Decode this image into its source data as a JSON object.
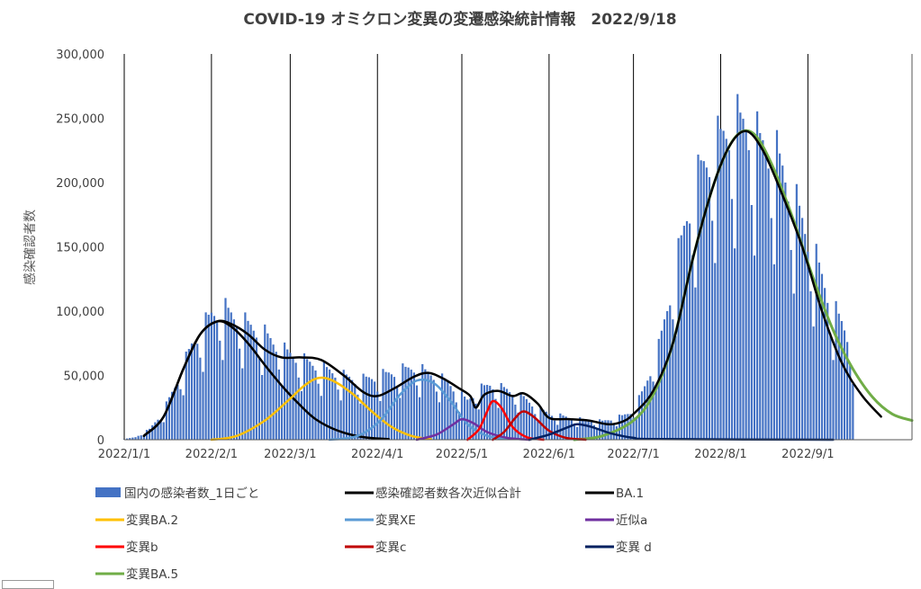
{
  "chart_data": {
    "type": "bar+line",
    "title": "COVID-19 オミクロン変異の変遷感染統計情報　2022/9/18",
    "ylabel": "感染確認者数",
    "xlabel": "",
    "ylim": [
      0,
      300000
    ],
    "y_ticks": [
      0,
      50000,
      100000,
      150000,
      200000,
      250000,
      300000
    ],
    "y_tick_labels": [
      "0",
      "50,000",
      "100,000",
      "150,000",
      "200,000",
      "250,000",
      "300,000"
    ],
    "x_range": [
      "2022/1/1",
      "2022/10/8"
    ],
    "x_ticks": [
      "2022/1/1",
      "2022/2/1",
      "2022/3/1",
      "2022/4/1",
      "2022/5/1",
      "2022/6/1",
      "2022/7/1",
      "2022/8/1",
      "2022/9/1"
    ],
    "x_tick_labels": [
      "2022/1/1",
      "2022/2/1",
      "2022/3/1",
      "2022/4/1",
      "2022/5/1",
      "2022/6/1",
      "2022/7/1",
      "2022/8/1",
      "2022/9/1"
    ],
    "vertical_gridlines": true,
    "horizontal_gridlines": false,
    "legend_position": "bottom",
    "daily_bars": {
      "name": "国内の感染者数_1日ごと",
      "color": "#4472C4",
      "keypoints": [
        [
          "2022/1/1",
          500
        ],
        [
          "2022/1/5",
          2000
        ],
        [
          "2022/1/10",
          8000
        ],
        [
          "2022/1/15",
          22000
        ],
        [
          "2022/1/20",
          45000
        ],
        [
          "2022/1/25",
          72000
        ],
        [
          "2022/2/1",
          95000
        ],
        [
          "2022/2/5",
          100000
        ],
        [
          "2022/2/10",
          92000
        ],
        [
          "2022/2/15",
          86000
        ],
        [
          "2022/2/20",
          80000
        ],
        [
          "2022/2/25",
          70000
        ],
        [
          "2022/3/1",
          65000
        ],
        [
          "2022/3/6",
          60000
        ],
        [
          "2022/3/12",
          55000
        ],
        [
          "2022/3/18",
          50000
        ],
        [
          "2022/3/25",
          45000
        ],
        [
          "2022/4/1",
          48000
        ],
        [
          "2022/4/8",
          52000
        ],
        [
          "2022/4/14",
          55000
        ],
        [
          "2022/4/20",
          50000
        ],
        [
          "2022/4/26",
          44000
        ],
        [
          "2022/4/30",
          35000
        ],
        [
          "2022/5/3",
          30000
        ],
        [
          "2022/5/7",
          38000
        ],
        [
          "2022/5/11",
          42000
        ],
        [
          "2022/5/17",
          38000
        ],
        [
          "2022/5/23",
          32000
        ],
        [
          "2022/5/28",
          24000
        ],
        [
          "2022/6/1",
          20000
        ],
        [
          "2022/6/10",
          16000
        ],
        [
          "2022/6/20",
          14000
        ],
        [
          "2022/6/27",
          18000
        ],
        [
          "2022/7/1",
          22000
        ],
        [
          "2022/7/5",
          40000
        ],
        [
          "2022/7/10",
          70000
        ],
        [
          "2022/7/15",
          120000
        ],
        [
          "2022/7/20",
          170000
        ],
        [
          "2022/7/25",
          205000
        ],
        [
          "2022/7/31",
          225000
        ],
        [
          "2022/8/5",
          240000
        ],
        [
          "2022/8/10",
          240000
        ],
        [
          "2022/8/15",
          225000
        ],
        [
          "2022/8/20",
          220000
        ],
        [
          "2022/8/25",
          195000
        ],
        [
          "2022/8/31",
          160000
        ],
        [
          "2022/9/5",
          130000
        ],
        [
          "2022/9/10",
          100000
        ],
        [
          "2022/9/14",
          85000
        ],
        [
          "2022/9/17",
          70000
        ]
      ]
    },
    "series": [
      {
        "name": "感染確認者数各次近似合計",
        "color": "#000000",
        "points": [
          [
            "2022/1/8",
            3000
          ],
          [
            "2022/1/15",
            18000
          ],
          [
            "2022/1/22",
            55000
          ],
          [
            "2022/1/28",
            82000
          ],
          [
            "2022/2/3",
            92000
          ],
          [
            "2022/2/8",
            90000
          ],
          [
            "2022/2/14",
            82000
          ],
          [
            "2022/2/20",
            70000
          ],
          [
            "2022/2/26",
            64000
          ],
          [
            "2022/3/5",
            64000
          ],
          [
            "2022/3/12",
            62000
          ],
          [
            "2022/3/20",
            50000
          ],
          [
            "2022/3/27",
            37000
          ],
          [
            "2022/4/1",
            34000
          ],
          [
            "2022/4/7",
            40000
          ],
          [
            "2022/4/14",
            49000
          ],
          [
            "2022/4/19",
            52000
          ],
          [
            "2022/4/24",
            48000
          ],
          [
            "2022/4/30",
            40000
          ],
          [
            "2022/5/4",
            34000
          ],
          [
            "2022/5/6",
            25000
          ],
          [
            "2022/5/9",
            35000
          ],
          [
            "2022/5/14",
            38000
          ],
          [
            "2022/5/19",
            34000
          ],
          [
            "2022/5/23",
            36000
          ],
          [
            "2022/5/28",
            28000
          ],
          [
            "2022/6/1",
            17000
          ],
          [
            "2022/6/8",
            16000
          ],
          [
            "2022/6/15",
            15000
          ],
          [
            "2022/6/22",
            12000
          ],
          [
            "2022/6/27",
            14000
          ],
          [
            "2022/7/1",
            20000
          ],
          [
            "2022/7/8",
            38000
          ],
          [
            "2022/7/15",
            75000
          ],
          [
            "2022/7/22",
            140000
          ],
          [
            "2022/7/29",
            195000
          ],
          [
            "2022/8/4",
            228000
          ],
          [
            "2022/8/10",
            240000
          ],
          [
            "2022/8/16",
            225000
          ],
          [
            "2022/8/23",
            190000
          ],
          [
            "2022/8/30",
            150000
          ],
          [
            "2022/9/6",
            100000
          ],
          [
            "2022/9/13",
            60000
          ],
          [
            "2022/9/20",
            35000
          ],
          [
            "2022/9/27",
            18000
          ]
        ]
      },
      {
        "name": "BA.1",
        "color": "#000000",
        "points": [
          [
            "2022/1/8",
            3000
          ],
          [
            "2022/1/15",
            18000
          ],
          [
            "2022/1/22",
            55000
          ],
          [
            "2022/1/28",
            82000
          ],
          [
            "2022/2/3",
            92000
          ],
          [
            "2022/2/8",
            88000
          ],
          [
            "2022/2/14",
            75000
          ],
          [
            "2022/2/20",
            58000
          ],
          [
            "2022/2/26",
            42000
          ],
          [
            "2022/3/4",
            28000
          ],
          [
            "2022/3/10",
            16000
          ],
          [
            "2022/3/18",
            7000
          ],
          [
            "2022/3/27",
            2000
          ],
          [
            "2022/4/5",
            500
          ]
        ]
      },
      {
        "name": "変異BA.2",
        "color": "#FFC000",
        "points": [
          [
            "2022/2/1",
            0
          ],
          [
            "2022/2/10",
            3000
          ],
          [
            "2022/2/20",
            15000
          ],
          [
            "2022/2/28",
            30000
          ],
          [
            "2022/3/6",
            42000
          ],
          [
            "2022/3/11",
            48000
          ],
          [
            "2022/3/16",
            46000
          ],
          [
            "2022/3/23",
            36000
          ],
          [
            "2022/3/30",
            22000
          ],
          [
            "2022/4/6",
            10000
          ],
          [
            "2022/4/13",
            3000
          ],
          [
            "2022/4/20",
            500
          ]
        ]
      },
      {
        "name": "変異XE",
        "color": "#5B9BD5",
        "points": [
          [
            "2022/3/15",
            0
          ],
          [
            "2022/3/25",
            3000
          ],
          [
            "2022/4/2",
            15000
          ],
          [
            "2022/4/9",
            35000
          ],
          [
            "2022/4/15",
            46000
          ],
          [
            "2022/4/21",
            44000
          ],
          [
            "2022/4/27",
            30000
          ],
          [
            "2022/5/3",
            12000
          ],
          [
            "2022/5/10",
            3000
          ],
          [
            "2022/5/18",
            500
          ]
        ]
      },
      {
        "name": "近似a",
        "color": "#7030A0",
        "points": [
          [
            "2022/4/15",
            0
          ],
          [
            "2022/4/22",
            4000
          ],
          [
            "2022/4/28",
            12000
          ],
          [
            "2022/5/1",
            16000
          ],
          [
            "2022/5/5",
            13000
          ],
          [
            "2022/5/10",
            6000
          ],
          [
            "2022/5/17",
            1500
          ],
          [
            "2022/5/25",
            0
          ]
        ]
      },
      {
        "name": "変異b",
        "color": "#FF0000",
        "points": [
          [
            "2022/5/3",
            0
          ],
          [
            "2022/5/7",
            8000
          ],
          [
            "2022/5/10",
            22000
          ],
          [
            "2022/5/12",
            30000
          ],
          [
            "2022/5/15",
            25000
          ],
          [
            "2022/5/19",
            10000
          ],
          [
            "2022/5/24",
            2000
          ],
          [
            "2022/5/30",
            0
          ]
        ]
      },
      {
        "name": "変異c",
        "color": "#C00000",
        "points": [
          [
            "2022/5/12",
            0
          ],
          [
            "2022/5/16",
            6000
          ],
          [
            "2022/5/20",
            17000
          ],
          [
            "2022/5/23",
            22000
          ],
          [
            "2022/5/27",
            17000
          ],
          [
            "2022/6/1",
            7000
          ],
          [
            "2022/6/7",
            1500
          ],
          [
            "2022/6/14",
            0
          ]
        ]
      },
      {
        "name": "変異 d",
        "color": "#002060",
        "points": [
          [
            "2022/5/25",
            0
          ],
          [
            "2022/6/1",
            4000
          ],
          [
            "2022/6/8",
            10000
          ],
          [
            "2022/6/11",
            12000
          ],
          [
            "2022/6/16",
            10000
          ],
          [
            "2022/6/23",
            5000
          ],
          [
            "2022/7/1",
            1500
          ],
          [
            "2022/7/10",
            500
          ],
          [
            "2022/9/10",
            0
          ]
        ]
      },
      {
        "name": "変異BA.5",
        "color": "#70AD47",
        "points": [
          [
            "2022/6/10",
            0
          ],
          [
            "2022/6/20",
            3000
          ],
          [
            "2022/7/1",
            15000
          ],
          [
            "2022/7/8",
            35000
          ],
          [
            "2022/7/15",
            75000
          ],
          [
            "2022/7/22",
            140000
          ],
          [
            "2022/7/29",
            195000
          ],
          [
            "2022/8/4",
            228000
          ],
          [
            "2022/8/9",
            240000
          ],
          [
            "2022/8/14",
            235000
          ],
          [
            "2022/8/20",
            210000
          ],
          [
            "2022/8/27",
            170000
          ],
          [
            "2022/9/3",
            125000
          ],
          [
            "2022/9/10",
            85000
          ],
          [
            "2022/9/17",
            55000
          ],
          [
            "2022/9/24",
            33000
          ],
          [
            "2022/10/1",
            20000
          ],
          [
            "2022/10/8",
            15000
          ]
        ]
      }
    ]
  }
}
